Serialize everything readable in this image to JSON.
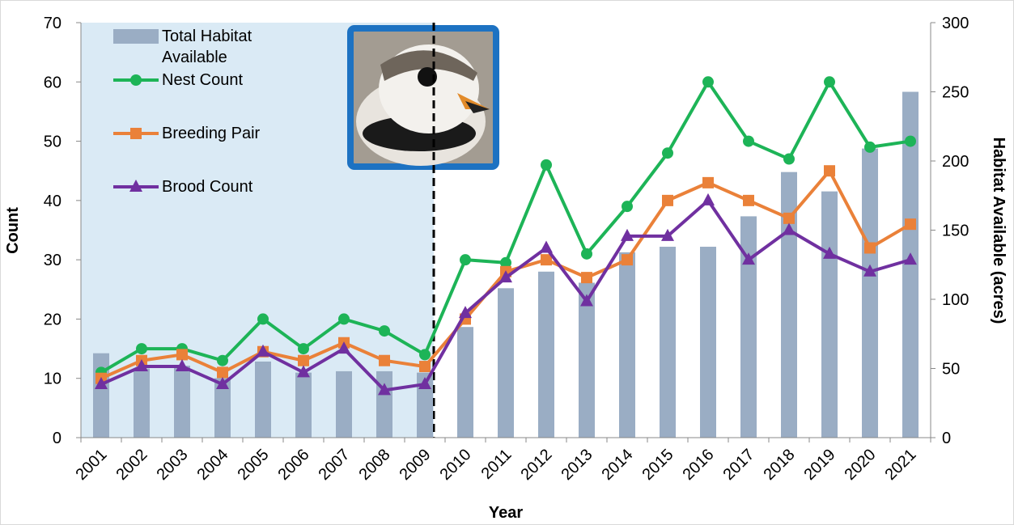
{
  "chart_data": {
    "type": "combo",
    "xlabel": "Year",
    "ylabel": "Count",
    "y2label": "Habitat Available (acres)",
    "categories": [
      "2001",
      "2002",
      "2003",
      "2004",
      "2005",
      "2006",
      "2007",
      "2008",
      "2009",
      "2010",
      "2011",
      "2012",
      "2013",
      "2014",
      "2015",
      "2016",
      "2017",
      "2018",
      "2019",
      "2020",
      "2021"
    ],
    "ylim": [
      0,
      70
    ],
    "yticks": [
      0,
      10,
      20,
      30,
      40,
      50,
      60,
      70
    ],
    "y2lim": [
      0,
      300
    ],
    "y2ticks": [
      0,
      50,
      100,
      150,
      200,
      250,
      300
    ],
    "series": [
      {
        "name": "Total Habitat Available",
        "type": "bar",
        "axis": "y2",
        "color": "#9aadc4",
        "values": [
          61,
          50,
          52,
          43,
          55,
          47,
          48,
          48,
          47,
          80,
          108,
          120,
          112,
          134,
          138,
          138,
          160,
          192,
          178,
          209,
          250
        ]
      },
      {
        "name": "Nest Count",
        "type": "line",
        "marker": "circle",
        "color": "#1db457",
        "values": [
          11,
          15,
          15,
          13,
          20,
          15,
          20,
          18,
          14,
          30,
          29.5,
          46,
          31,
          39,
          48,
          60,
          50,
          47,
          60,
          49,
          50
        ]
      },
      {
        "name": "Breeding Pair",
        "type": "line",
        "marker": "square",
        "color": "#ea8139",
        "values": [
          10,
          13,
          14,
          11,
          14.5,
          13,
          16,
          13,
          12,
          20,
          28,
          30,
          27,
          30,
          40,
          43,
          40,
          37,
          45,
          32,
          36
        ]
      },
      {
        "name": "Brood Count",
        "type": "line",
        "marker": "triangle",
        "color": "#7030a0",
        "values": [
          9,
          12,
          12,
          9,
          14.5,
          11,
          15,
          8,
          9,
          21,
          27,
          32,
          23,
          34,
          34,
          40,
          30,
          35,
          31,
          28,
          30
        ]
      }
    ]
  }
}
